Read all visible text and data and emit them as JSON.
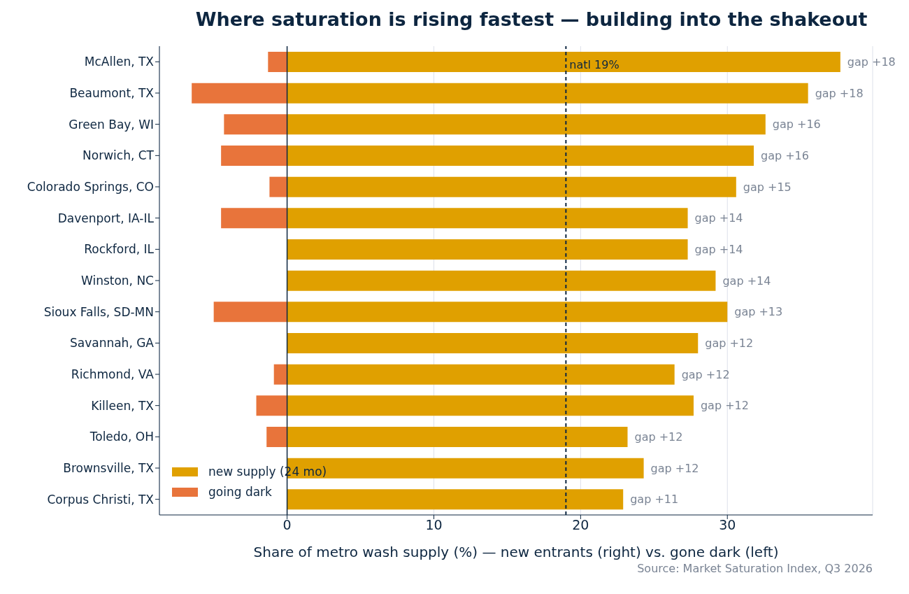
{
  "chart_data": {
    "type": "bar",
    "orientation": "horizontal",
    "stacked": true,
    "title": "Where saturation is rising fastest — building into the shakeout",
    "xlabel": "Share of metro wash supply (%) — new entrants (right) vs. gone dark (left)",
    "categories": [
      "McAllen, TX",
      "Beaumont, TX",
      "Green Bay, WI",
      "Norwich, CT",
      "Colorado Springs, CO",
      "Davenport, IA-IL",
      "Rockford, IL",
      "Winston, NC",
      "Sioux Falls, SD-MN",
      "Savannah, GA",
      "Richmond, VA",
      "Killeen, TX",
      "Toledo, OH",
      "Brownsville, TX",
      "Corpus Christi, TX"
    ],
    "series": [
      {
        "name": "new supply (24 mo)",
        "color": "#e0a000",
        "values": [
          37.7,
          35.5,
          32.6,
          31.8,
          30.6,
          27.3,
          27.3,
          29.2,
          30.0,
          28.0,
          26.4,
          27.7,
          23.2,
          24.3,
          22.9
        ]
      },
      {
        "name": "going dark",
        "color": "#e8743b",
        "values": [
          -1.3,
          -6.5,
          -4.3,
          -4.5,
          -1.2,
          -4.5,
          0,
          0,
          -5.0,
          0,
          -0.9,
          -2.1,
          -1.4,
          0,
          0
        ]
      }
    ],
    "xlim": [
      -8.7,
      39.9
    ],
    "xticks": [
      0,
      10,
      20,
      30
    ],
    "grid": "x",
    "legend": "bottom left",
    "ref_lines": [
      {
        "axis": "x",
        "value": 19,
        "label": "natl 19%",
        "line_style": "dashed",
        "color": "#0d2640"
      }
    ],
    "annotations": [
      {
        "text": "gap +18",
        "x": 37.7,
        "y": "McAllen, TX"
      },
      {
        "text": "gap +18",
        "x": 35.5,
        "y": "Beaumont, TX"
      },
      {
        "text": "gap +16",
        "x": 32.6,
        "y": "Green Bay, WI"
      },
      {
        "text": "gap +16",
        "x": 31.8,
        "y": "Norwich, CT"
      },
      {
        "text": "gap +15",
        "x": 30.6,
        "y": "Colorado Springs, CO"
      },
      {
        "text": "gap +14",
        "x": 27.3,
        "y": "Davenport, IA-IL"
      },
      {
        "text": "gap +14",
        "x": 27.3,
        "y": "Rockford, IL"
      },
      {
        "text": "gap +14",
        "x": 29.2,
        "y": "Winston, NC"
      },
      {
        "text": "gap +13",
        "x": 30.0,
        "y": "Sioux Falls, SD-MN"
      },
      {
        "text": "gap +12",
        "x": 28.0,
        "y": "Savannah, GA"
      },
      {
        "text": "gap +12",
        "x": 26.4,
        "y": "Richmond, VA"
      },
      {
        "text": "gap +12",
        "x": 27.7,
        "y": "Killeen, TX"
      },
      {
        "text": "gap +12",
        "x": 23.2,
        "y": "Toledo, OH"
      },
      {
        "text": "gap +12",
        "x": 24.3,
        "y": "Brownsville, TX"
      },
      {
        "text": "gap +11",
        "x": 22.9,
        "y": "Corpus Christi, TX"
      },
      "Source: Market Saturation Index, Q3 2026"
    ]
  }
}
